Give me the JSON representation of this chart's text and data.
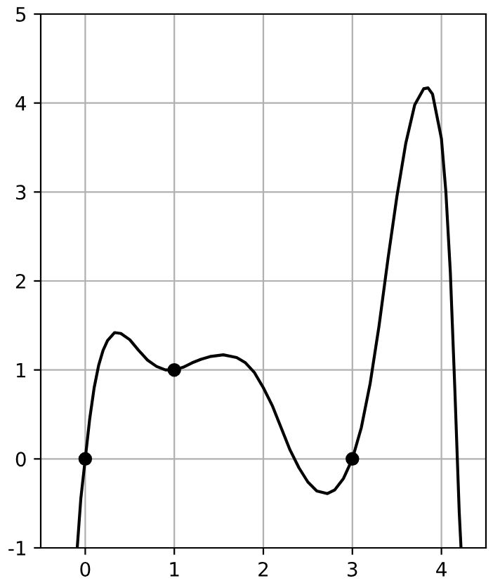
{
  "chart_data": {
    "type": "line",
    "xlim": [
      -0.5,
      4.5
    ],
    "ylim": [
      -1,
      5
    ],
    "xticks": [
      0,
      1,
      2,
      3,
      4
    ],
    "yticks": [
      -1,
      0,
      1,
      2,
      3,
      4,
      5
    ],
    "grid": true,
    "series": [
      {
        "color": "#000000",
        "marker": "none",
        "x": [
          -0.09,
          -0.05,
          0,
          0.05,
          0.1,
          0.15,
          0.2,
          0.25,
          0.33,
          0.4,
          0.5,
          0.6,
          0.7,
          0.8,
          0.9,
          1.0,
          1.1,
          1.2,
          1.3,
          1.4,
          1.55,
          1.7,
          1.8,
          1.9,
          2.0,
          2.1,
          2.2,
          2.3,
          2.4,
          2.5,
          2.6,
          2.72,
          2.8,
          2.9,
          3.0,
          3.1,
          3.2,
          3.3,
          3.4,
          3.5,
          3.6,
          3.7,
          3.8,
          3.85,
          3.9,
          4.0,
          4.05,
          4.1,
          4.15,
          4.2,
          4.22
        ],
        "values": [
          -1.0,
          -0.45,
          0,
          0.45,
          0.8,
          1.05,
          1.22,
          1.33,
          1.42,
          1.41,
          1.34,
          1.22,
          1.11,
          1.04,
          1.0,
          1.0,
          1.03,
          1.08,
          1.12,
          1.15,
          1.17,
          1.14,
          1.08,
          0.97,
          0.8,
          0.6,
          0.35,
          0.1,
          -0.1,
          -0.26,
          -0.36,
          -0.39,
          -0.35,
          -0.22,
          0,
          0.35,
          0.85,
          1.5,
          2.25,
          2.95,
          3.55,
          3.98,
          4.16,
          4.17,
          4.1,
          3.6,
          3.0,
          2.1,
          0.8,
          -0.6,
          -1.0
        ]
      },
      {
        "type": "scatter",
        "color": "#000000",
        "marker": "circle",
        "x": [
          0,
          1,
          3
        ],
        "values": [
          0,
          1,
          0
        ]
      }
    ]
  }
}
